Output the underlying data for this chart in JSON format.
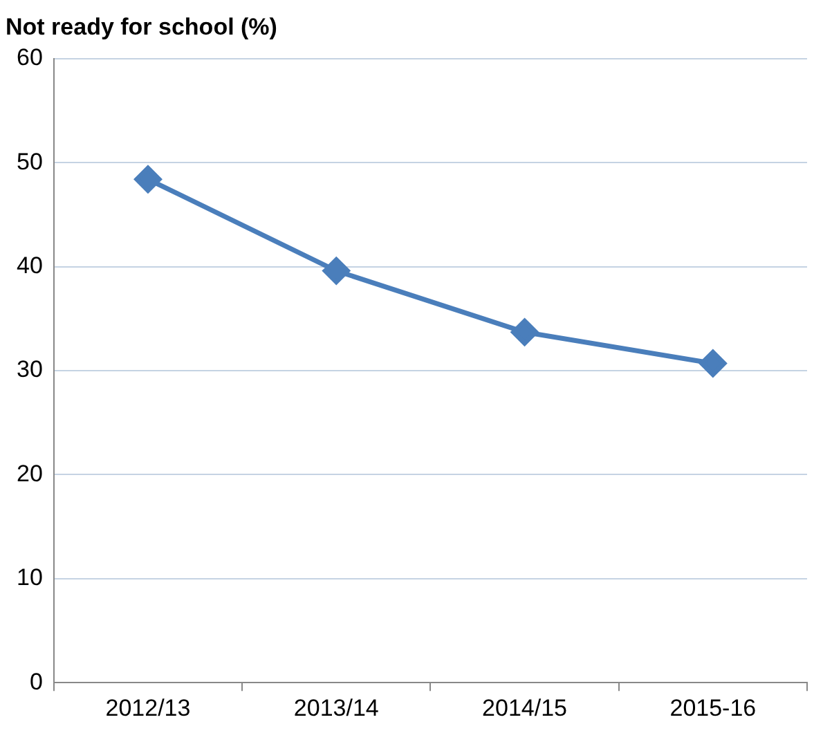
{
  "chart_data": {
    "type": "line",
    "ylabel": "Not ready for school (%)",
    "categories": [
      "2012/13",
      "2013/14",
      "2014/15",
      "2015-16"
    ],
    "series": [
      {
        "color": "#4a7ebb",
        "values": [
          48.4,
          39.6,
          33.7,
          30.7
        ]
      }
    ],
    "ylim": [
      0,
      60
    ],
    "yticks": [
      0,
      10,
      20,
      30,
      40,
      50,
      60
    ],
    "grid": "y",
    "legend": false,
    "marker": "diamond",
    "line_style": "solid"
  }
}
